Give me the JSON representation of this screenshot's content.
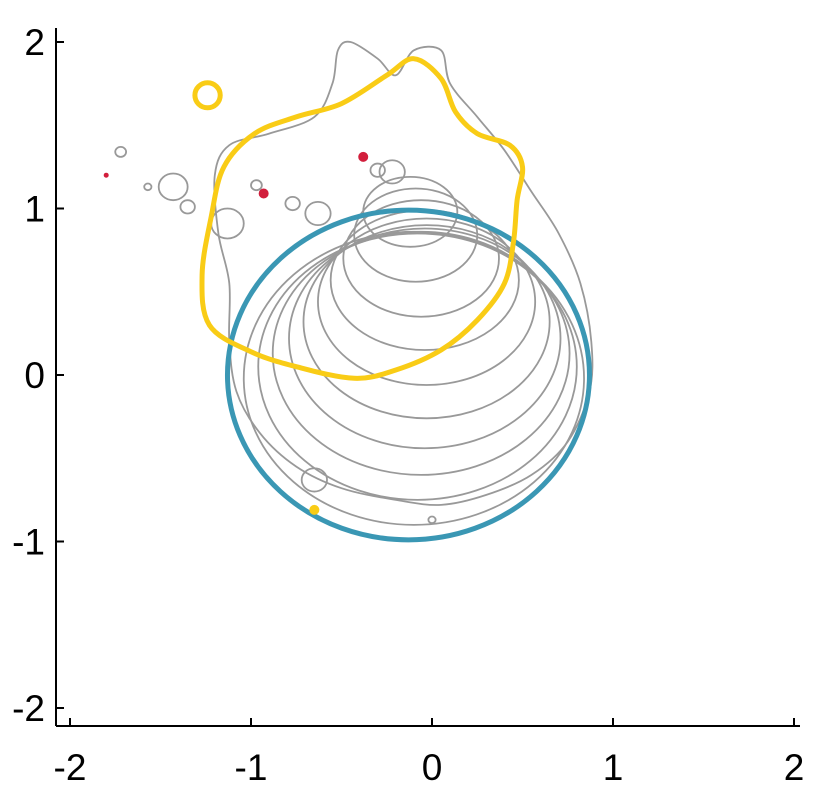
{
  "chart_data": {
    "type": "scatter",
    "title": "",
    "xlabel": "",
    "ylabel": "",
    "xlim": [
      -2.05,
      2.05
    ],
    "ylim": [
      -2.05,
      2.05
    ],
    "xticks": [
      {
        "value": -2,
        "label": "-2"
      },
      {
        "value": -1,
        "label": "-1"
      },
      {
        "value": 0,
        "label": "0"
      },
      {
        "value": 1,
        "label": "1"
      },
      {
        "value": 2,
        "label": "2"
      }
    ],
    "yticks": [
      {
        "value": -2,
        "label": "-2"
      },
      {
        "value": -1,
        "label": "-1"
      },
      {
        "value": 0,
        "label": "0"
      },
      {
        "value": 1,
        "label": "1"
      },
      {
        "value": 2,
        "label": "2"
      }
    ],
    "grid": false,
    "colors": {
      "ellipse": "#3a97b4",
      "yellow": "#f9cc16",
      "contours": "#999999",
      "red_points": "#d21e3c"
    },
    "ellipse": {
      "cx": -0.13,
      "cy": 0.0,
      "rx": 1.0,
      "ry": 0.99
    },
    "contour_levels": [
      {
        "cx": -0.1,
        "cy": -0.02,
        "rx": 0.94,
        "ry": 0.88
      },
      {
        "cx": -0.08,
        "cy": 0.05,
        "rx": 0.88,
        "ry": 0.8
      },
      {
        "cx": -0.06,
        "cy": 0.13,
        "rx": 0.82,
        "ry": 0.73
      },
      {
        "cx": -0.04,
        "cy": 0.22,
        "rx": 0.75,
        "ry": 0.66
      },
      {
        "cx": -0.03,
        "cy": 0.32,
        "rx": 0.68,
        "ry": 0.58
      },
      {
        "cx": -0.03,
        "cy": 0.44,
        "rx": 0.6,
        "ry": 0.5
      },
      {
        "cx": -0.04,
        "cy": 0.57,
        "rx": 0.52,
        "ry": 0.42
      },
      {
        "cx": -0.06,
        "cy": 0.7,
        "rx": 0.43,
        "ry": 0.35
      },
      {
        "cx": -0.09,
        "cy": 0.84,
        "rx": 0.34,
        "ry": 0.28
      },
      {
        "cx": -0.12,
        "cy": 0.98,
        "rx": 0.26,
        "ry": 0.21
      }
    ],
    "outer_contour": [
      [
        -0.45,
        2.0
      ],
      [
        -0.3,
        1.9
      ],
      [
        -0.2,
        1.8
      ],
      [
        -0.1,
        1.95
      ],
      [
        0.05,
        1.95
      ],
      [
        0.1,
        1.75
      ],
      [
        0.25,
        1.55
      ],
      [
        0.4,
        1.35
      ],
      [
        0.55,
        1.1
      ],
      [
        0.7,
        0.85
      ],
      [
        0.82,
        0.55
      ],
      [
        0.88,
        0.2
      ],
      [
        0.87,
        -0.1
      ],
      [
        0.75,
        -0.4
      ],
      [
        0.55,
        -0.6
      ],
      [
        0.3,
        -0.72
      ],
      [
        0.05,
        -0.78
      ],
      [
        -0.2,
        -0.75
      ],
      [
        -0.5,
        -0.68
      ],
      [
        -0.75,
        -0.55
      ],
      [
        -0.95,
        -0.35
      ],
      [
        -1.08,
        -0.1
      ],
      [
        -1.12,
        0.2
      ],
      [
        -1.12,
        0.55
      ],
      [
        -1.18,
        0.85
      ],
      [
        -1.2,
        1.2
      ],
      [
        -1.12,
        1.38
      ],
      [
        -0.9,
        1.45
      ],
      [
        -0.65,
        1.55
      ],
      [
        -0.55,
        1.75
      ],
      [
        -0.52,
        1.95
      ]
    ],
    "yellow_contour": [
      [
        -0.43,
        -0.02
      ],
      [
        -0.2,
        0.03
      ],
      [
        0.05,
        0.15
      ],
      [
        0.25,
        0.33
      ],
      [
        0.4,
        0.55
      ],
      [
        0.45,
        0.8
      ],
      [
        0.47,
        1.05
      ],
      [
        0.5,
        1.25
      ],
      [
        0.43,
        1.38
      ],
      [
        0.25,
        1.45
      ],
      [
        0.13,
        1.58
      ],
      [
        0.05,
        1.78
      ],
      [
        -0.1,
        1.9
      ],
      [
        -0.25,
        1.8
      ],
      [
        -0.5,
        1.63
      ],
      [
        -0.75,
        1.55
      ],
      [
        -0.98,
        1.45
      ],
      [
        -1.15,
        1.25
      ],
      [
        -1.22,
        0.95
      ],
      [
        -1.27,
        0.6
      ],
      [
        -1.23,
        0.3
      ],
      [
        -1.0,
        0.14
      ],
      [
        -0.75,
        0.05
      ]
    ],
    "yellow_small_loop": {
      "cx": -1.24,
      "cy": 1.68,
      "rx": 0.07,
      "ry": 0.075
    },
    "small_gray_circles": [
      {
        "x": -1.72,
        "y": 1.34,
        "r": 0.03
      },
      {
        "x": -1.57,
        "y": 1.13,
        "r": 0.02
      },
      {
        "x": -1.43,
        "y": 1.13,
        "r": 0.08
      },
      {
        "x": -1.35,
        "y": 1.01,
        "r": 0.04
      },
      {
        "x": -1.13,
        "y": 0.91,
        "r": 0.09
      },
      {
        "x": -0.97,
        "y": 1.14,
        "r": 0.03
      },
      {
        "x": -0.77,
        "y": 1.03,
        "r": 0.04
      },
      {
        "x": -0.63,
        "y": 0.97,
        "r": 0.07
      },
      {
        "x": -0.3,
        "y": 1.23,
        "r": 0.04
      },
      {
        "x": -0.22,
        "y": 1.22,
        "r": 0.07
      },
      {
        "x": -0.65,
        "y": -0.63,
        "r": 0.07
      },
      {
        "x": 0.0,
        "y": -0.87,
        "r": 0.02
      }
    ],
    "red_points": [
      {
        "x": -1.8,
        "y": 1.2
      },
      {
        "x": -0.93,
        "y": 1.09
      },
      {
        "x": -0.38,
        "y": 1.31
      }
    ],
    "yellow_points": [
      {
        "x": -0.65,
        "y": -0.81
      }
    ]
  }
}
